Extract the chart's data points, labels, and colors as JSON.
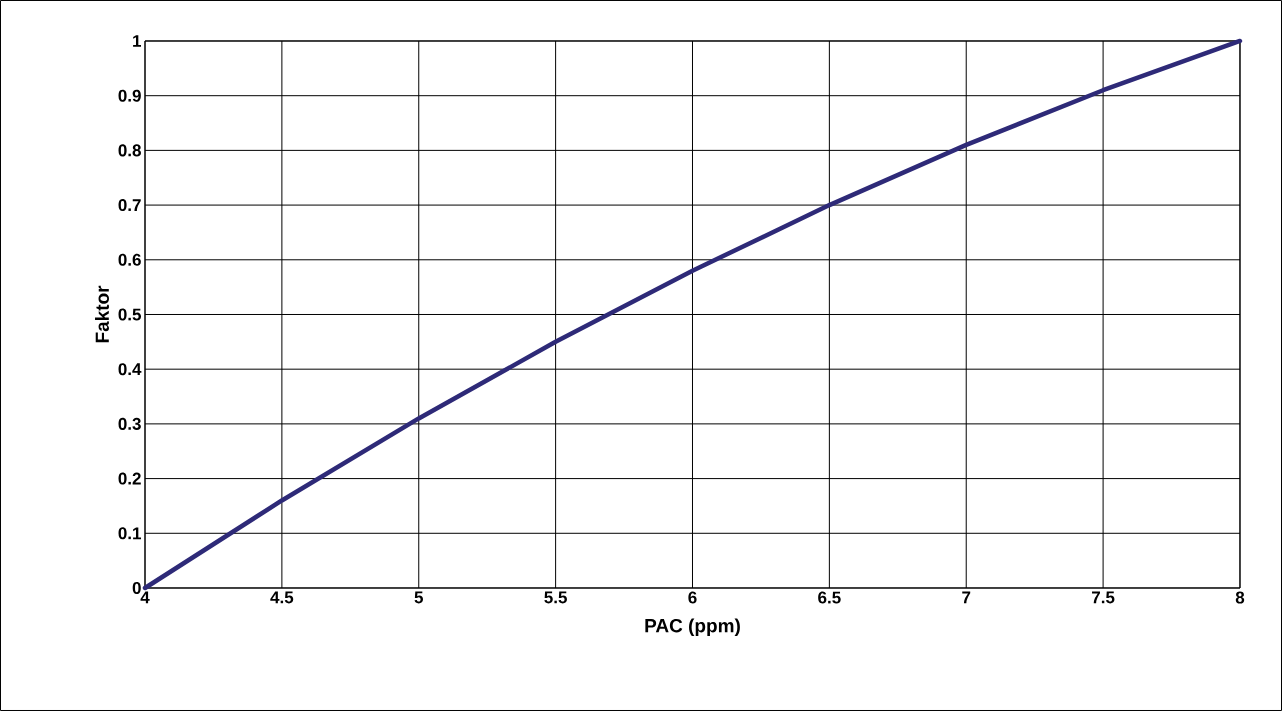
{
  "chart_data": {
    "type": "line",
    "xlabel": "PAC (ppm)",
    "ylabel": "Faktor",
    "x": [
      4,
      4.5,
      5,
      5.5,
      6,
      6.5,
      7,
      7.5,
      8
    ],
    "series": [
      {
        "color": "#2e2a78",
        "values": [
          0,
          0.16,
          0.31,
          0.45,
          0.58,
          0.7,
          0.81,
          0.91,
          1.0
        ]
      }
    ],
    "xlim": [
      4,
      8
    ],
    "ylim": [
      0,
      1
    ],
    "xticks": [
      4,
      4.5,
      5,
      5.5,
      6,
      6.5,
      7,
      7.5,
      8
    ],
    "yticks": [
      0,
      0.1,
      0.2,
      0.3,
      0.4,
      0.5,
      0.6,
      0.7,
      0.8,
      0.9,
      1
    ],
    "grid": true,
    "marker": "none",
    "line_style": "solid"
  }
}
